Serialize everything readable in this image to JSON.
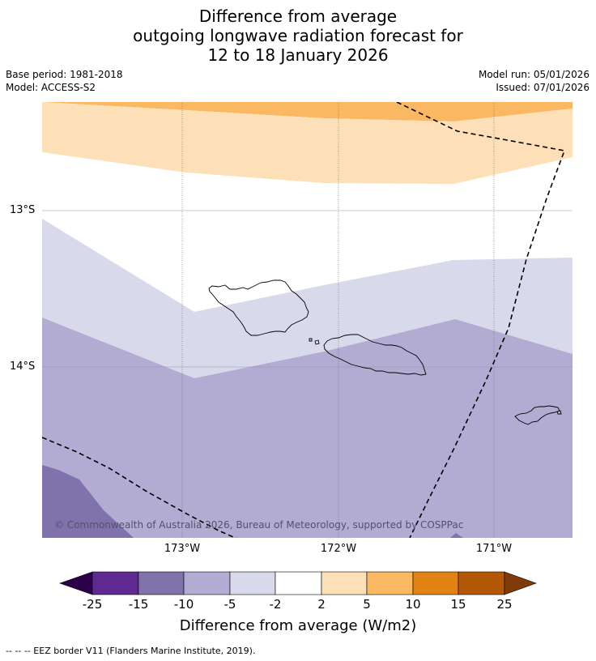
{
  "title": {
    "line1": "Difference from average",
    "line2": "outgoing longwave radiation forecast for",
    "line3": "12 to 18 January 2026"
  },
  "meta": {
    "base_period": "Base period: 1981-2018",
    "model": "Model: ACCESS-S2",
    "model_run": "Model run: 05/01/2026",
    "issued": "Issued: 07/01/2026"
  },
  "map": {
    "latitude_labels": [
      "13°S",
      "14°S"
    ],
    "longitude_labels": [
      "173°W",
      "172°W",
      "171°W"
    ],
    "copyright": "© Commonwealth of Australia 2026, Bureau of Meteorology, supported by COSPPac",
    "zones": [
      {
        "range": "5 to 10",
        "color": "#fbb862"
      },
      {
        "range": "2 to 5",
        "color": "#fde0b7"
      },
      {
        "range": "-2 to 2",
        "color": "#ffffff"
      },
      {
        "range": "-5 to -2",
        "color": "#d8d9eb"
      },
      {
        "range": "-10 to -5",
        "color": "#b2abd2"
      },
      {
        "range": "-15 to -10",
        "color": "#8073ac"
      }
    ]
  },
  "colorbar": {
    "ticks": [
      "-25",
      "-15",
      "-10",
      "-5",
      "-2",
      "2",
      "5",
      "10",
      "15",
      "25"
    ],
    "colors": [
      "#5e2a92",
      "#8073ac",
      "#b2abd2",
      "#d8d9eb",
      "#ffffff",
      "#fde0b7",
      "#fbb862",
      "#e08214",
      "#b35806"
    ],
    "low_extend_color": "#2d004b",
    "high_extend_color": "#7f3b08",
    "label": "Difference from average (W/m2)"
  },
  "legend": {
    "eez": "--  --  -- EEZ border V11 (Flanders Marine Institute, 2019)."
  }
}
